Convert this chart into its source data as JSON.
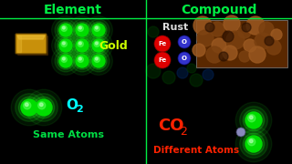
{
  "background_color": "#000000",
  "divider_color": "#00ee44",
  "header_color": "#00ee44",
  "title_element": "Element",
  "title_compound": "Compound",
  "gold_label": "Gold",
  "gold_label_color": "#ccff00",
  "o2_color": "#00ffff",
  "same_atoms_label": "Same Atoms",
  "same_atoms_color": "#00dd44",
  "rust_label": "Rust",
  "rust_label_color": "#dddddd",
  "co2_label_color": "#ff2200",
  "different_atoms_label": "Different Atoms",
  "different_atoms_color": "#ff2200",
  "fe_label": "Fe",
  "o_label": "O",
  "green_ball_color": "#00dd00",
  "green_ball_inner": "#22ff22",
  "green_glow": "#003300",
  "red_ball_color": "#dd0000",
  "blue_ball_color": "#3333cc",
  "gold_bar_color": "#c8900a",
  "gold_bar_highlight": "#e8b830",
  "gold_bar_shadow": "#8a6000",
  "rust_bg": "#5a2800",
  "rust_mid": "#7a4010",
  "rust_light": "#9a5820"
}
